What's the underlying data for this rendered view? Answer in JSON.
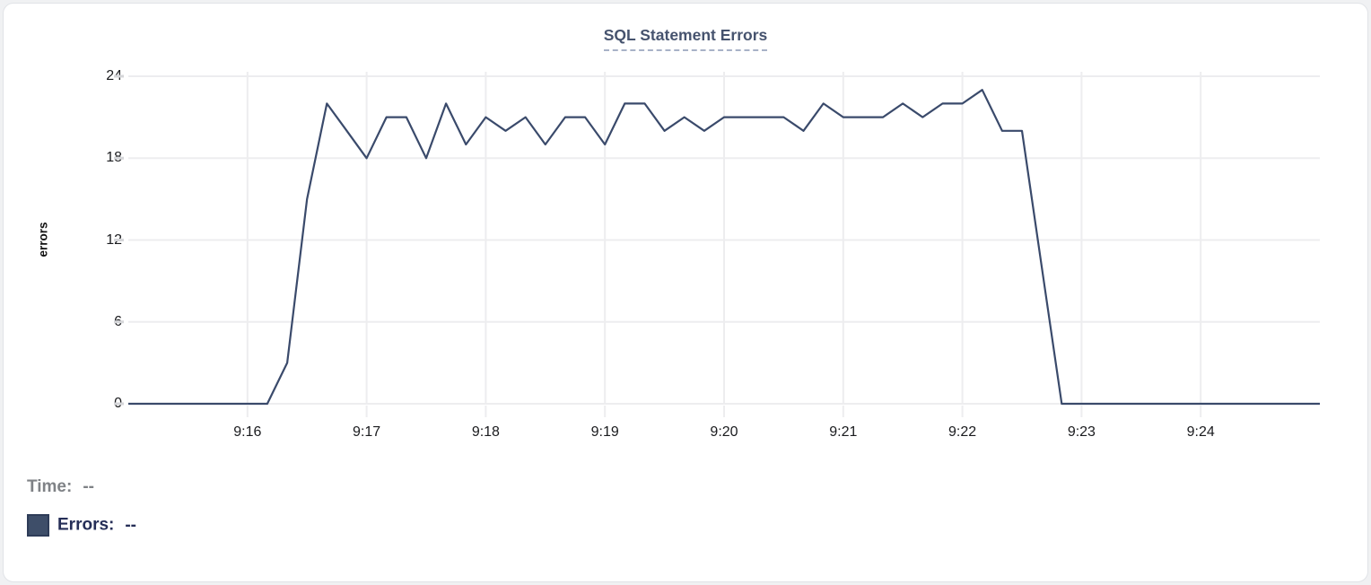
{
  "card": {
    "title": "SQL Statement Errors"
  },
  "tooltip": {
    "time_label": "Time:",
    "time_value": "--",
    "errors_label": "Errors:",
    "errors_value": "--"
  },
  "colors": {
    "page_bg": "#f0f1f3",
    "card_bg": "#ffffff",
    "card_border": "#e1e3e7",
    "title": "#46536e",
    "title_underline": "#a8b2c7",
    "line": "#3a4a6b",
    "grid": "#ededef",
    "tick": "#d5d6d9",
    "axis_text": "#1a1b1e",
    "time_text": "#7f8286",
    "errors_text": "#252e57",
    "swatch_fill": "#3e4e69",
    "swatch_border": "#2e3c58"
  },
  "chart_data": {
    "type": "line",
    "title": "SQL Statement Errors",
    "xlabel": "",
    "ylabel": "errors",
    "series_name": "Errors",
    "ylim": [
      0,
      24
    ],
    "y_ticks": [
      0,
      6,
      12,
      18,
      24
    ],
    "x_tick_labels": [
      "9:16",
      "9:17",
      "9:18",
      "9:19",
      "9:20",
      "9:21",
      "9:22",
      "9:23",
      "9:24"
    ],
    "x_range": [
      "9:15:00",
      "9:25:00"
    ],
    "interval_seconds": 10,
    "grid": true,
    "legend_position": "bottom-left",
    "x": [
      "9:15:00",
      "9:15:10",
      "9:15:20",
      "9:15:30",
      "9:15:40",
      "9:15:50",
      "9:16:00",
      "9:16:10",
      "9:16:20",
      "9:16:30",
      "9:16:40",
      "9:16:50",
      "9:17:00",
      "9:17:10",
      "9:17:20",
      "9:17:30",
      "9:17:40",
      "9:17:50",
      "9:18:00",
      "9:18:10",
      "9:18:20",
      "9:18:30",
      "9:18:40",
      "9:18:50",
      "9:19:00",
      "9:19:10",
      "9:19:20",
      "9:19:30",
      "9:19:40",
      "9:19:50",
      "9:20:00",
      "9:20:10",
      "9:20:20",
      "9:20:30",
      "9:20:40",
      "9:20:50",
      "9:21:00",
      "9:21:10",
      "9:21:20",
      "9:21:30",
      "9:21:40",
      "9:21:50",
      "9:22:00",
      "9:22:10",
      "9:22:20",
      "9:22:30",
      "9:22:40",
      "9:22:50",
      "9:23:00",
      "9:23:10",
      "9:23:20",
      "9:23:30",
      "9:23:40",
      "9:23:50",
      "9:24:00",
      "9:24:10",
      "9:24:20",
      "9:24:30",
      "9:24:40",
      "9:24:50",
      "9:25:00"
    ],
    "values": [
      0,
      0,
      0,
      0,
      0,
      0,
      0,
      0,
      3,
      15,
      22,
      20,
      18,
      21,
      21,
      18,
      22,
      19,
      21,
      20,
      21,
      19,
      21,
      21,
      19,
      22,
      22,
      20,
      21,
      20,
      21,
      21,
      21,
      21,
      20,
      22,
      21,
      21,
      21,
      22,
      21,
      22,
      22,
      23,
      20,
      20,
      10,
      0,
      0,
      0,
      0,
      0,
      0,
      0,
      0,
      0,
      0,
      0,
      0,
      0,
      0
    ]
  }
}
